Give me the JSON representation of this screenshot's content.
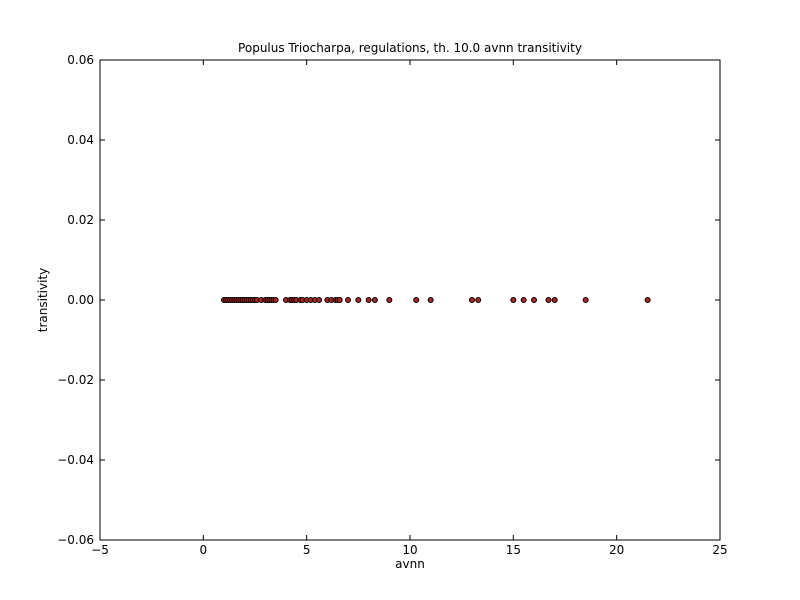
{
  "chart_data": {
    "type": "scatter",
    "title": "Populus Triocharpa, regulations, th. 10.0 avnn transitivity",
    "xlabel": "avnn",
    "ylabel": "transitivity",
    "xlim": [
      -5,
      25
    ],
    "ylim": [
      -0.06,
      0.06
    ],
    "x_ticks": [
      -5,
      0,
      5,
      10,
      15,
      20,
      25
    ],
    "y_ticks": [
      -0.06,
      -0.04,
      -0.02,
      0.0,
      0.02,
      0.04,
      0.06
    ],
    "x_tick_labels": [
      "−5",
      "0",
      "5",
      "10",
      "15",
      "20",
      "25"
    ],
    "y_tick_labels": [
      "−0.06",
      "−0.04",
      "−0.02",
      "0.00",
      "0.02",
      "0.04",
      "0.06"
    ],
    "grid": false,
    "marker_color": "#b22222",
    "marker_edge_color": "#000000",
    "series": [
      {
        "x": [
          1.0,
          1.1,
          1.2,
          1.3,
          1.4,
          1.5,
          1.6,
          1.7,
          1.8,
          1.9,
          2.0,
          2.1,
          2.2,
          2.3,
          2.4,
          2.5,
          2.6,
          2.8,
          3.0,
          3.1,
          3.2,
          3.3,
          3.4,
          3.5,
          4.0,
          4.2,
          4.3,
          4.4,
          4.5,
          4.7,
          4.8,
          5.0,
          5.2,
          5.4,
          5.6,
          6.0,
          6.2,
          6.4,
          6.5,
          6.6,
          7.0,
          7.5,
          8.0,
          8.3,
          9.0,
          10.3,
          11.0,
          13.0,
          13.3,
          15.0,
          15.5,
          16.0,
          16.7,
          17.0,
          18.5,
          21.5
        ],
        "y": [
          0,
          0,
          0,
          0,
          0,
          0,
          0,
          0,
          0,
          0,
          0,
          0,
          0,
          0,
          0,
          0,
          0,
          0,
          0,
          0,
          0,
          0,
          0,
          0,
          0,
          0,
          0,
          0,
          0,
          0,
          0,
          0,
          0,
          0,
          0,
          0,
          0,
          0,
          0,
          0,
          0,
          0,
          0,
          0,
          0,
          0,
          0,
          0,
          0,
          0,
          0,
          0,
          0,
          0,
          0,
          0
        ]
      }
    ]
  }
}
